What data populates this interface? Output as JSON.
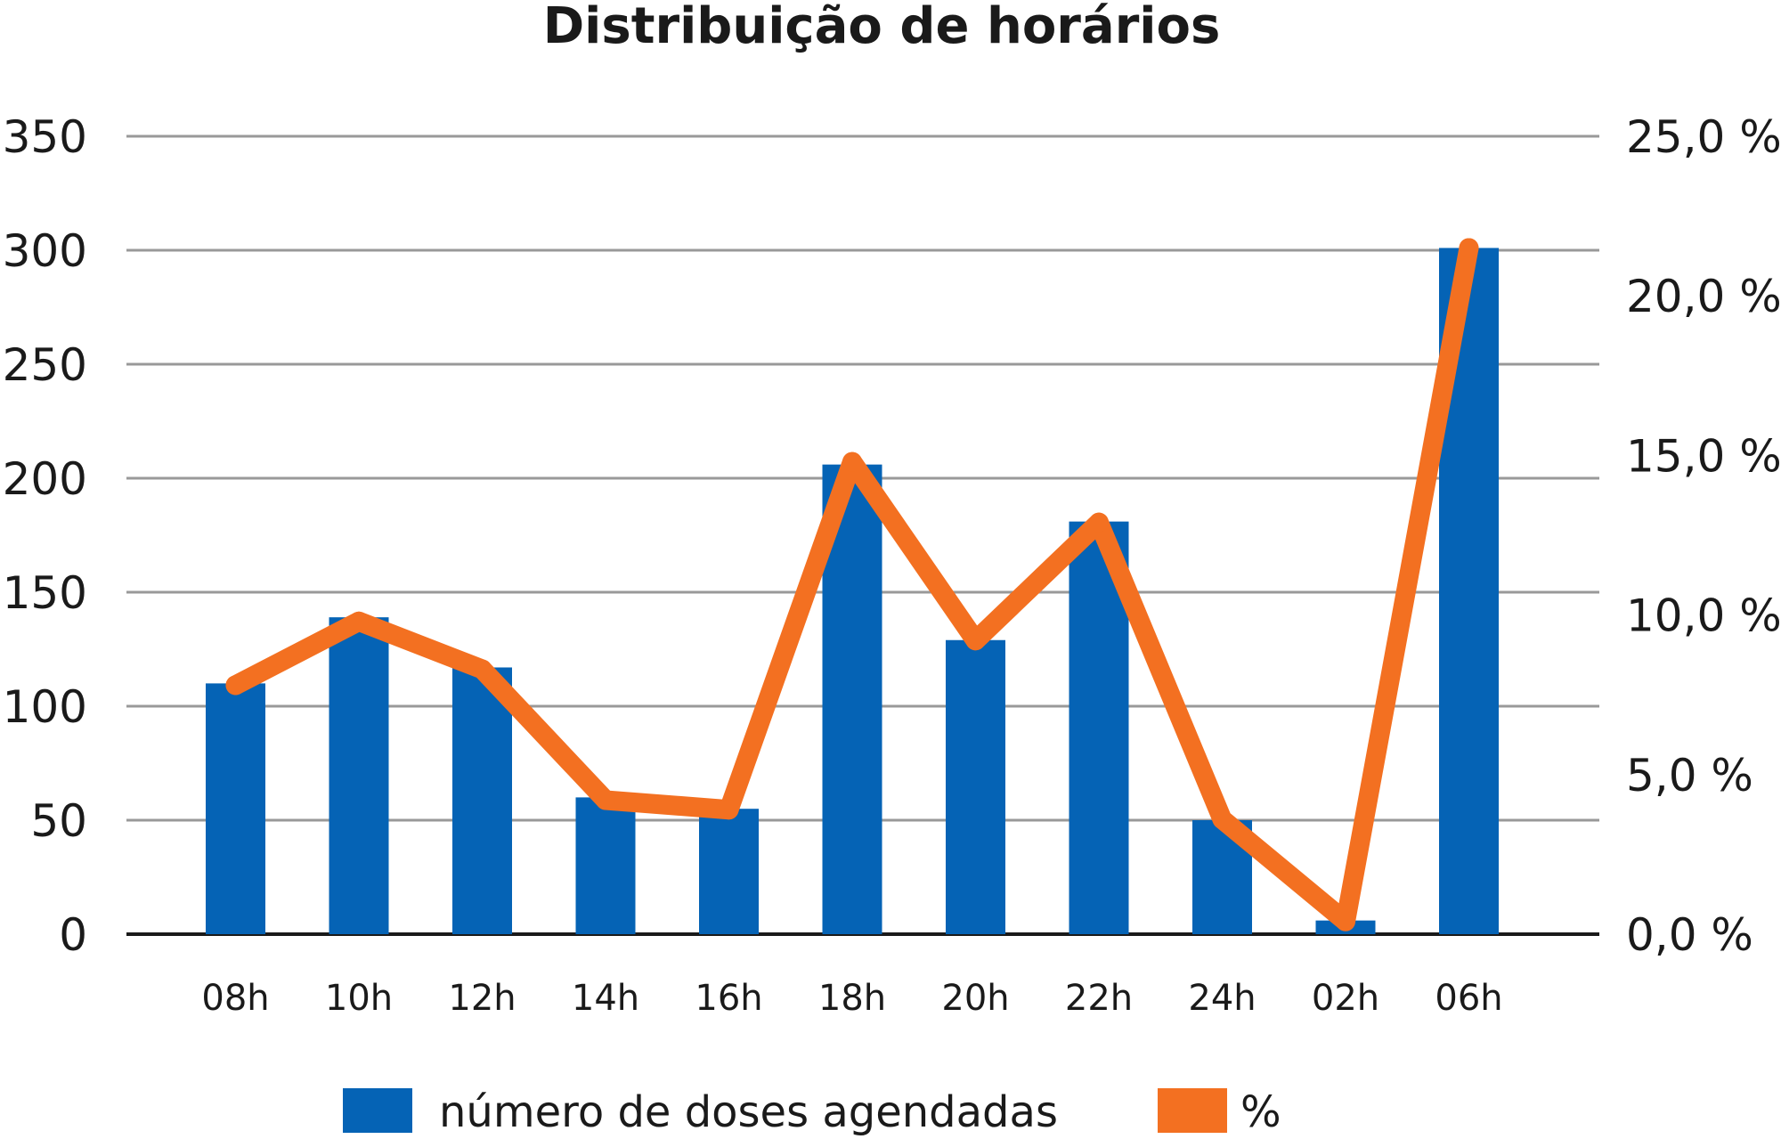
{
  "chart_data": {
    "type": "bar",
    "title": "Distribuição de horários",
    "categories": [
      "08h",
      "10h",
      "12h",
      "14h",
      "16h",
      "18h",
      "20h",
      "22h",
      "24h",
      "02h",
      "06h"
    ],
    "series": [
      {
        "name": "número de doses agendadas",
        "type": "bar",
        "axis": "left",
        "color": "#0563b5",
        "values": [
          110,
          139,
          117,
          60,
          55,
          206,
          129,
          181,
          50,
          6,
          301
        ]
      },
      {
        "name": "%",
        "type": "line",
        "axis": "right",
        "color": "#f37021",
        "values": [
          7.8,
          9.8,
          8.3,
          4.2,
          3.9,
          14.8,
          9.2,
          12.9,
          3.6,
          0.4,
          21.5
        ]
      }
    ],
    "ylim": [
      0,
      350
    ],
    "y_ticks": [
      "0",
      "50",
      "100",
      "150",
      "200",
      "250",
      "300",
      "350"
    ],
    "y2lim": [
      0,
      25
    ],
    "y2_ticks": [
      "0,0 %",
      "5,0 %",
      "10,0 %",
      "15,0 %",
      "20,0 %",
      "25,0 %"
    ],
    "grid": true,
    "legend_position": "bottom"
  }
}
